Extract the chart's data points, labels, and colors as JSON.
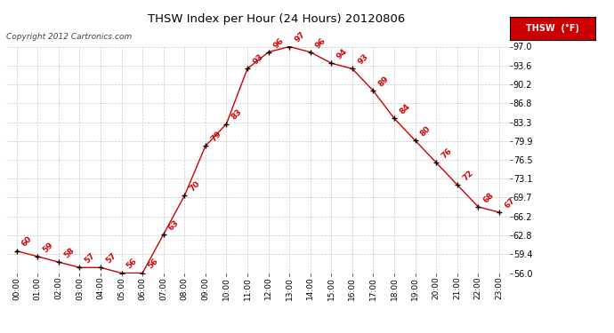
{
  "title": "THSW Index per Hour (24 Hours) 20120806",
  "copyright": "Copyright 2012 Cartronics.com",
  "legend_label": "THSW  (°F)",
  "hours": [
    0,
    1,
    2,
    3,
    4,
    5,
    6,
    7,
    8,
    9,
    10,
    11,
    12,
    13,
    14,
    15,
    16,
    17,
    18,
    19,
    20,
    21,
    22,
    23
  ],
  "x_labels": [
    "00:00",
    "01:00",
    "02:00",
    "03:00",
    "04:00",
    "05:00",
    "06:00",
    "07:00",
    "08:00",
    "09:00",
    "10:00",
    "11:00",
    "12:00",
    "13:00",
    "14:00",
    "15:00",
    "16:00",
    "17:00",
    "18:00",
    "19:00",
    "20:00",
    "21:00",
    "22:00",
    "23:00"
  ],
  "values": [
    60,
    59,
    58,
    57,
    57,
    56,
    56,
    63,
    70,
    79,
    83,
    93,
    96,
    97,
    96,
    94,
    93,
    89,
    84,
    80,
    76,
    72,
    68,
    67
  ],
  "line_color": "#cc0000",
  "marker_color": "#000000",
  "label_color": "#cc0000",
  "bg_color": "#ffffff",
  "grid_color": "#c8c8c8",
  "title_color": "#000000",
  "copyright_color": "#444444",
  "ylim": [
    56.0,
    97.0
  ],
  "yticks": [
    56.0,
    59.4,
    62.8,
    66.2,
    69.7,
    73.1,
    76.5,
    79.9,
    83.3,
    86.8,
    90.2,
    93.6,
    97.0
  ],
  "ytick_labels": [
    "56.0",
    "59.4",
    "62.8",
    "66.2",
    "69.7",
    "73.1",
    "76.5",
    "79.9",
    "83.3",
    "86.8",
    "90.2",
    "93.6",
    "97.0"
  ],
  "legend_bg": "#cc0000",
  "legend_text_color": "#ffffff",
  "figwidth": 6.9,
  "figheight": 3.75,
  "dpi": 100
}
